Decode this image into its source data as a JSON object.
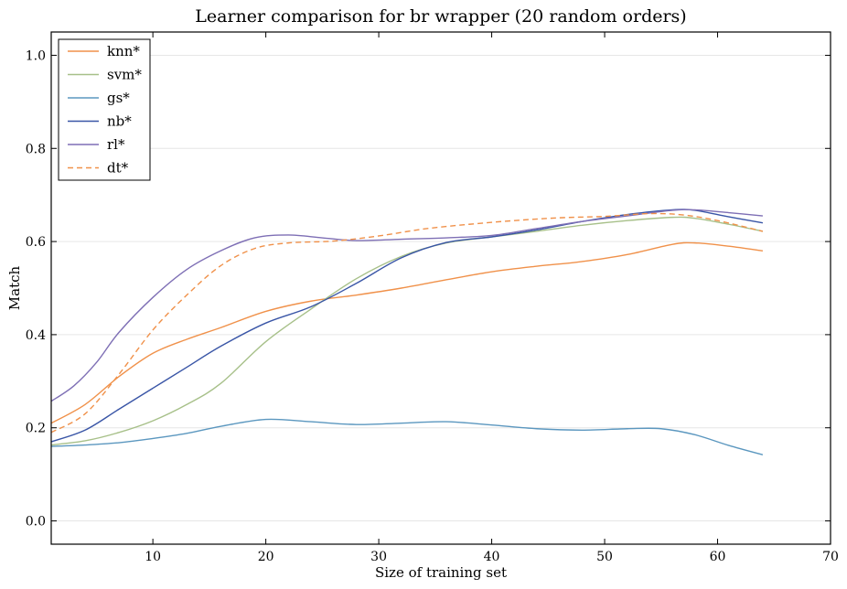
{
  "chart_data": {
    "type": "line",
    "title": "Learner comparison for br wrapper (20 random orders)",
    "xlabel": "Size of training set",
    "ylabel": "Match",
    "xlim": [
      1,
      70
    ],
    "ylim": [
      -0.05,
      1.05
    ],
    "xticks": [
      10,
      20,
      30,
      40,
      50,
      60,
      70
    ],
    "yticks": [
      "0.0",
      "0.2",
      "0.4",
      "0.6",
      "0.8",
      "1.0"
    ],
    "grid": "horizontal",
    "legend_position": "top-left",
    "series": [
      {
        "name": "knn*",
        "color": "#f0914a",
        "dash": false,
        "points": [
          [
            1,
            0.21
          ],
          [
            4,
            0.25
          ],
          [
            7,
            0.31
          ],
          [
            10,
            0.36
          ],
          [
            13,
            0.39
          ],
          [
            16,
            0.415
          ],
          [
            20,
            0.45
          ],
          [
            24,
            0.472
          ],
          [
            28,
            0.485
          ],
          [
            32,
            0.5
          ],
          [
            36,
            0.518
          ],
          [
            40,
            0.535
          ],
          [
            44,
            0.547
          ],
          [
            48,
            0.557
          ],
          [
            52,
            0.572
          ],
          [
            56,
            0.594
          ],
          [
            58,
            0.597
          ],
          [
            61,
            0.59
          ],
          [
            64,
            0.58
          ]
        ]
      },
      {
        "name": "svm*",
        "color": "#a7c089",
        "dash": false,
        "points": [
          [
            1,
            0.163
          ],
          [
            4,
            0.172
          ],
          [
            7,
            0.19
          ],
          [
            10,
            0.215
          ],
          [
            13,
            0.25
          ],
          [
            16,
            0.295
          ],
          [
            20,
            0.385
          ],
          [
            24,
            0.455
          ],
          [
            28,
            0.52
          ],
          [
            32,
            0.568
          ],
          [
            36,
            0.597
          ],
          [
            40,
            0.61
          ],
          [
            44,
            0.622
          ],
          [
            48,
            0.635
          ],
          [
            52,
            0.645
          ],
          [
            56,
            0.652
          ],
          [
            58,
            0.65
          ],
          [
            61,
            0.637
          ],
          [
            64,
            0.622
          ]
        ]
      },
      {
        "name": "gs*",
        "color": "#5b97bf",
        "dash": false,
        "points": [
          [
            1,
            0.16
          ],
          [
            4,
            0.163
          ],
          [
            7,
            0.168
          ],
          [
            10,
            0.177
          ],
          [
            13,
            0.188
          ],
          [
            16,
            0.203
          ],
          [
            20,
            0.218
          ],
          [
            24,
            0.213
          ],
          [
            28,
            0.207
          ],
          [
            32,
            0.21
          ],
          [
            36,
            0.213
          ],
          [
            40,
            0.206
          ],
          [
            44,
            0.198
          ],
          [
            48,
            0.195
          ],
          [
            52,
            0.198
          ],
          [
            55,
            0.198
          ],
          [
            58,
            0.185
          ],
          [
            61,
            0.162
          ],
          [
            64,
            0.142
          ]
        ]
      },
      {
        "name": "nb*",
        "color": "#3955a6",
        "dash": false,
        "points": [
          [
            1,
            0.17
          ],
          [
            4,
            0.195
          ],
          [
            7,
            0.24
          ],
          [
            10,
            0.285
          ],
          [
            13,
            0.33
          ],
          [
            16,
            0.375
          ],
          [
            20,
            0.425
          ],
          [
            24,
            0.46
          ],
          [
            28,
            0.51
          ],
          [
            32,
            0.565
          ],
          [
            36,
            0.598
          ],
          [
            40,
            0.61
          ],
          [
            44,
            0.625
          ],
          [
            48,
            0.643
          ],
          [
            52,
            0.658
          ],
          [
            56,
            0.668
          ],
          [
            58,
            0.667
          ],
          [
            61,
            0.653
          ],
          [
            64,
            0.64
          ]
        ]
      },
      {
        "name": "rl*",
        "color": "#7e6fb5",
        "dash": false,
        "points": [
          [
            1,
            0.257
          ],
          [
            3,
            0.29
          ],
          [
            5,
            0.34
          ],
          [
            7,
            0.405
          ],
          [
            10,
            0.48
          ],
          [
            13,
            0.54
          ],
          [
            16,
            0.58
          ],
          [
            19,
            0.608
          ],
          [
            22,
            0.614
          ],
          [
            25,
            0.608
          ],
          [
            28,
            0.602
          ],
          [
            32,
            0.605
          ],
          [
            36,
            0.608
          ],
          [
            40,
            0.613
          ],
          [
            44,
            0.628
          ],
          [
            48,
            0.643
          ],
          [
            52,
            0.655
          ],
          [
            56,
            0.667
          ],
          [
            58,
            0.668
          ],
          [
            61,
            0.662
          ],
          [
            64,
            0.655
          ]
        ]
      },
      {
        "name": "dt*",
        "color": "#f0914a",
        "dash": true,
        "points": [
          [
            1,
            0.19
          ],
          [
            4,
            0.23
          ],
          [
            7,
            0.315
          ],
          [
            10,
            0.41
          ],
          [
            13,
            0.485
          ],
          [
            16,
            0.548
          ],
          [
            19,
            0.585
          ],
          [
            22,
            0.597
          ],
          [
            26,
            0.601
          ],
          [
            30,
            0.612
          ],
          [
            34,
            0.627
          ],
          [
            38,
            0.637
          ],
          [
            42,
            0.645
          ],
          [
            46,
            0.651
          ],
          [
            50,
            0.654
          ],
          [
            54,
            0.66
          ],
          [
            57,
            0.657
          ],
          [
            60,
            0.645
          ],
          [
            64,
            0.622
          ]
        ]
      }
    ]
  }
}
